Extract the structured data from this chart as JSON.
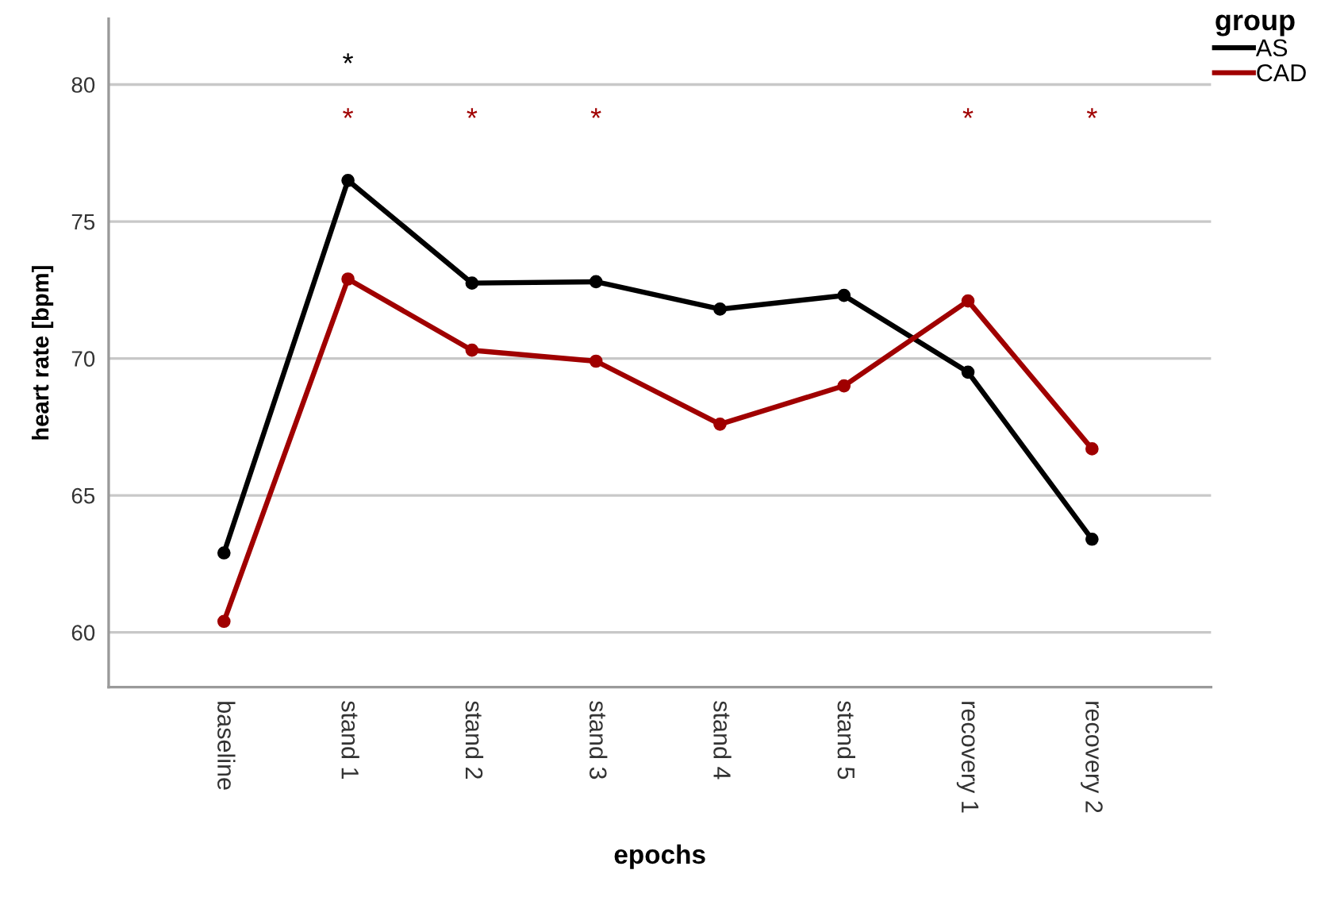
{
  "chart_data": {
    "type": "line",
    "xlabel": "epochs",
    "ylabel": "heart rate [bpm]",
    "legend_title": "group",
    "categories": [
      "baseline",
      "stand 1",
      "stand 2",
      "stand 3",
      "stand 4",
      "stand 5",
      "recovery 1",
      "recovery 2"
    ],
    "series": [
      {
        "name": "AS",
        "color": "#000000",
        "values": [
          62.9,
          76.5,
          72.75,
          72.8,
          71.8,
          72.3,
          69.5,
          63.4
        ]
      },
      {
        "name": "CAD",
        "color": "#a00000",
        "values": [
          60.4,
          72.9,
          70.3,
          69.9,
          67.6,
          69.0,
          72.1,
          66.7
        ]
      }
    ],
    "annotations": [
      "*",
      "*",
      "*",
      "*",
      "*",
      "*"
    ],
    "ylim": [
      58,
      82.4
    ],
    "yticks": [
      60,
      65,
      70,
      75,
      80
    ],
    "grid": "y",
    "legend": "top right",
    "marker": "circle",
    "line_style": "solid"
  }
}
